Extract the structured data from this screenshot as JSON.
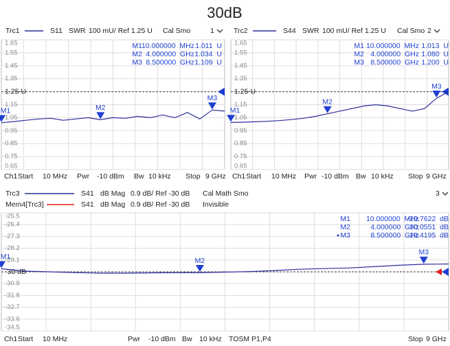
{
  "title": "30dB",
  "chart_data": [
    {
      "type": "line",
      "header": [
        {
          "items": [
            "Trc1",
            "S11",
            "SWR",
            "100 mU/ Ref 1.25 U",
            "Cal Smo",
            "1"
          ],
          "color": "#2b2b9a"
        }
      ],
      "footer": [
        "Ch1",
        "Start",
        "10 MHz",
        "Pwr",
        "-10 dBm",
        "Bw",
        "10 kHz",
        "Stop",
        "9 GHz"
      ],
      "xlim": [
        0.01,
        9
      ],
      "ylim": [
        0.65,
        1.65
      ],
      "yticks": [
        1.65,
        1.55,
        1.45,
        1.35,
        {
          "value": 1.25,
          "label": "1.25 U"
        },
        1.15,
        1.05,
        0.95,
        0.85,
        0.75,
        0.65
      ],
      "grid": true,
      "x": [
        0.01,
        0.5,
        1,
        1.5,
        2,
        2.5,
        3,
        3.5,
        4,
        4.5,
        5,
        5.5,
        6,
        6.5,
        7,
        7.5,
        8,
        8.5,
        9
      ],
      "series": [
        {
          "color": "#2b2b9a",
          "values": [
            1.011,
            1.02,
            1.03,
            1.04,
            1.045,
            1.03,
            1.04,
            1.05,
            1.034,
            1.05,
            1.045,
            1.06,
            1.05,
            1.07,
            1.05,
            1.09,
            1.04,
            1.109,
            1.1
          ]
        }
      ],
      "marker_color": "#1f3fd0",
      "markers": [
        {
          "name": "M1",
          "x": 0.01,
          "value": 1.011,
          "freq": "10.000000  MHz",
          "value_label": "1.011  U"
        },
        {
          "name": "M2",
          "x": 4,
          "value": 1.034,
          "freq": "4.000000  GHz",
          "value_label": "1.034  U"
        },
        {
          "name": "M3",
          "x": 8.5,
          "value": 1.109,
          "freq": "8.500000  GHz",
          "value_label": "1.109  U"
        }
      ]
    },
    {
      "type": "line",
      "header": [
        {
          "items": [
            "Trc2",
            "S44",
            "SWR",
            "100 mU/ Ref 1.25 U",
            "Cal Smo",
            "2"
          ],
          "color": "#2b2b9a"
        }
      ],
      "footer": [
        "Ch1",
        "Start",
        "10 MHz",
        "Pwr",
        "-10 dBm",
        "Bw",
        "10 kHz",
        "Stop",
        "9 GHz"
      ],
      "xlim": [
        0.01,
        9
      ],
      "ylim": [
        0.65,
        1.65
      ],
      "yticks": [
        1.65,
        1.55,
        1.45,
        1.35,
        {
          "value": 1.25,
          "label": "1.25 U"
        },
        1.15,
        1.05,
        0.95,
        0.85,
        0.75,
        0.65
      ],
      "grid": true,
      "x": [
        0.01,
        0.5,
        1,
        1.5,
        2,
        2.5,
        3,
        3.5,
        4,
        4.5,
        5,
        5.5,
        6,
        6.5,
        7,
        7.5,
        8,
        8.5,
        9
      ],
      "series": [
        {
          "color": "#2b2b9a",
          "values": [
            1.013,
            1.015,
            1.018,
            1.022,
            1.027,
            1.035,
            1.045,
            1.06,
            1.08,
            1.1,
            1.12,
            1.14,
            1.15,
            1.14,
            1.12,
            1.1,
            1.12,
            1.2,
            1.25
          ]
        }
      ],
      "marker_color": "#1f3fd0",
      "markers": [
        {
          "name": "M1",
          "x": 0.01,
          "value": 1.013,
          "freq": "10.000000  MHz",
          "value_label": "1.013  U"
        },
        {
          "name": "M2",
          "x": 4,
          "value": 1.08,
          "freq": "4.000000  GHz",
          "value_label": "1.080  U"
        },
        {
          "name": "M3",
          "x": 8.5,
          "value": 1.2,
          "freq": "8.500000  GHz",
          "value_label": "1.200  U"
        }
      ]
    },
    {
      "type": "line",
      "header": [
        {
          "items": [
            "Trc3",
            "S41",
            "dB Mag",
            "0.9 dB/ Ref -30 dB",
            "Cal Math Smo",
            "3"
          ],
          "color": "#2b2b9a"
        },
        {
          "items": [
            "Mem4[Trc3]",
            "S41",
            "dB Mag",
            "0.9 dB/ Ref -30 dB",
            "Invisible"
          ],
          "color": "#e02020"
        }
      ],
      "footer": [
        "Ch1",
        "Start",
        "10 MHz",
        "Pwr",
        "-10 dBm",
        "Bw",
        "10 kHz",
        "TOSM P1,P4",
        "Stop",
        "9 GHz"
      ],
      "xlim": [
        0.01,
        9
      ],
      "ylim": [
        -34.5,
        -25.5
      ],
      "yticks": [
        -25.5,
        -26.4,
        -27.3,
        -28.2,
        -29.1,
        {
          "value": -30,
          "label": "-30 dB"
        },
        -30.9,
        -31.8,
        -32.7,
        -33.6,
        -34.5
      ],
      "grid": true,
      "x": [
        0.01,
        0.5,
        1,
        1.5,
        2,
        2.5,
        3,
        3.5,
        4,
        4.5,
        5,
        5.5,
        6,
        6.5,
        7,
        7.5,
        8,
        8.5,
        9
      ],
      "series": [
        {
          "color": "#2b2b9a",
          "values": [
            -29.7622,
            -29.95,
            -30.0,
            -30.05,
            -30.1,
            -30.1,
            -30.08,
            -30.06,
            -30.0551,
            -30.02,
            -29.98,
            -29.9,
            -29.8,
            -29.75,
            -29.7,
            -29.6,
            -29.5,
            -29.4195,
            -29.4
          ]
        }
      ],
      "marker_color": "#1f3fd0",
      "markers": [
        {
          "name": "M1",
          "x": 0.01,
          "value": -29.7622,
          "freq": "10.000000  MHz",
          "value_label": "-29.7622  dB"
        },
        {
          "name": "M2",
          "x": 4,
          "value": -30.0551,
          "freq": "4.000000  GHz",
          "value_label": "-30.0551  dB"
        },
        {
          "name": "M3",
          "x": 8.5,
          "value": -29.4195,
          "freq": "8.500000  GHz",
          "value_label": "-29.4195  dB",
          "active": true
        }
      ]
    }
  ]
}
